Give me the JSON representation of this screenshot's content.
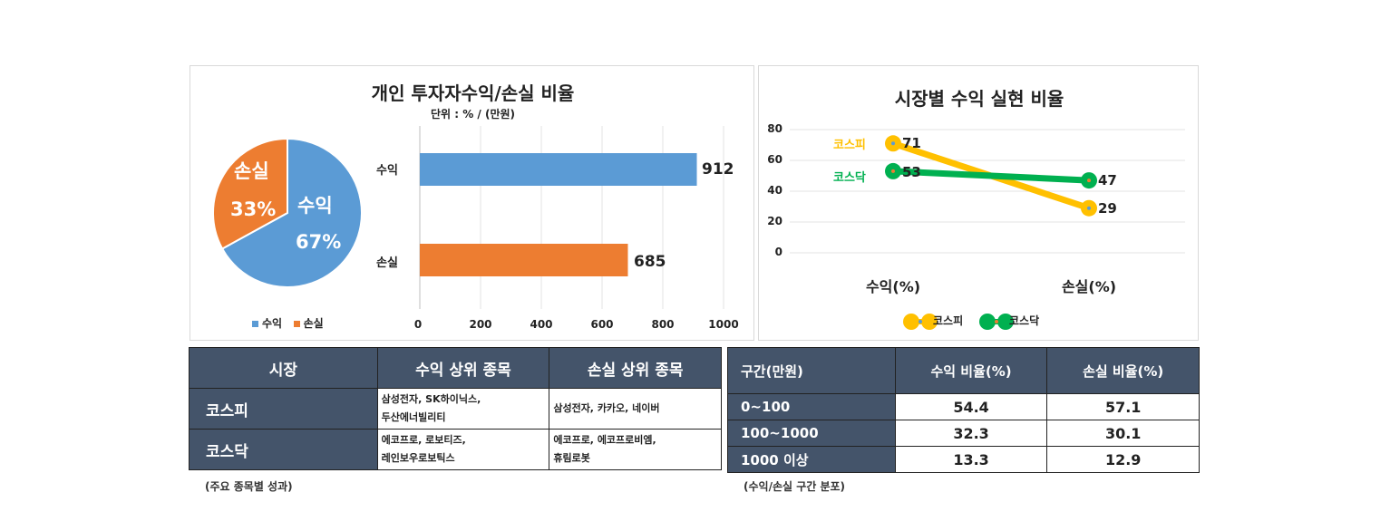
{
  "chart_data": [
    {
      "type": "pie",
      "title": "개인 투자자수익/손실 비율",
      "subtitle": "단위 : % / (만원)",
      "categories": [
        "수익",
        "손실"
      ],
      "values": [
        67,
        33
      ],
      "labels": [
        "67%",
        "33%"
      ],
      "colors": [
        "#5b9bd5",
        "#ed7d31"
      ],
      "legend": [
        "수익",
        "손실"
      ]
    },
    {
      "type": "bar",
      "orientation": "horizontal",
      "categories": [
        "수익",
        "손실"
      ],
      "values": [
        912,
        685
      ],
      "colors": [
        "#5b9bd5",
        "#ed7d31"
      ],
      "xlim": [
        0,
        1000
      ],
      "xticks": [
        "0",
        "200",
        "400",
        "600",
        "800",
        "1000"
      ]
    },
    {
      "type": "line",
      "title": "시장별 수익 실현 비율",
      "categories": [
        "수익(%)",
        "손실(%)"
      ],
      "ylim": [
        0,
        80
      ],
      "yticks": [
        "0",
        "20",
        "40",
        "60",
        "80"
      ],
      "series": [
        {
          "name": "코스피",
          "values": [
            71,
            29
          ],
          "color": "#ffc000"
        },
        {
          "name": "코스닥",
          "values": [
            53,
            47
          ],
          "color": "#00b050"
        }
      ]
    }
  ],
  "pie_text": {
    "gain_label": "수익",
    "gain_pct": "67%",
    "loss_label": "손실",
    "loss_pct": "33%"
  },
  "bar_text": {
    "gain_label": "수익",
    "loss_label": "손실",
    "gain_value": "912",
    "loss_value": "685"
  },
  "line_text": {
    "kospi_label": "코스피",
    "kosdaq_label": "코스닥",
    "kospi_v1": "71",
    "kospi_v2": "29",
    "kosdaq_v1": "53",
    "kosdaq_v2": "47"
  },
  "table1": {
    "headers": [
      "시장",
      "수익 상위 종목",
      "손실 상위 종목"
    ],
    "rows": [
      {
        "market": "코스피",
        "gain1": "삼성전자, SK하이닉스,",
        "gain2": "두산에너빌리티",
        "loss1": "삼성전자, 카카오, 네이버",
        "loss2": ""
      },
      {
        "market": "코스닥",
        "gain1": "에코프로, 로보티즈,",
        "gain2": "레인보우로보틱스",
        "loss1": "에코프로, 에코프로비엠,",
        "loss2": "휴림로봇"
      }
    ],
    "caption": "(주요 종목별 성과)"
  },
  "table2": {
    "headers": [
      "구간(만원)",
      "수익 비율(%)",
      "손실 비율(%)"
    ],
    "rows": [
      {
        "range": "0~100",
        "gain": "54.4",
        "loss": "57.1"
      },
      {
        "range": "100~1000",
        "gain": "32.3",
        "loss": "30.1"
      },
      {
        "range": "1000 이상",
        "gain": "13.3",
        "loss": "12.9"
      }
    ],
    "caption": "(수익/손실 구간 분포)"
  }
}
